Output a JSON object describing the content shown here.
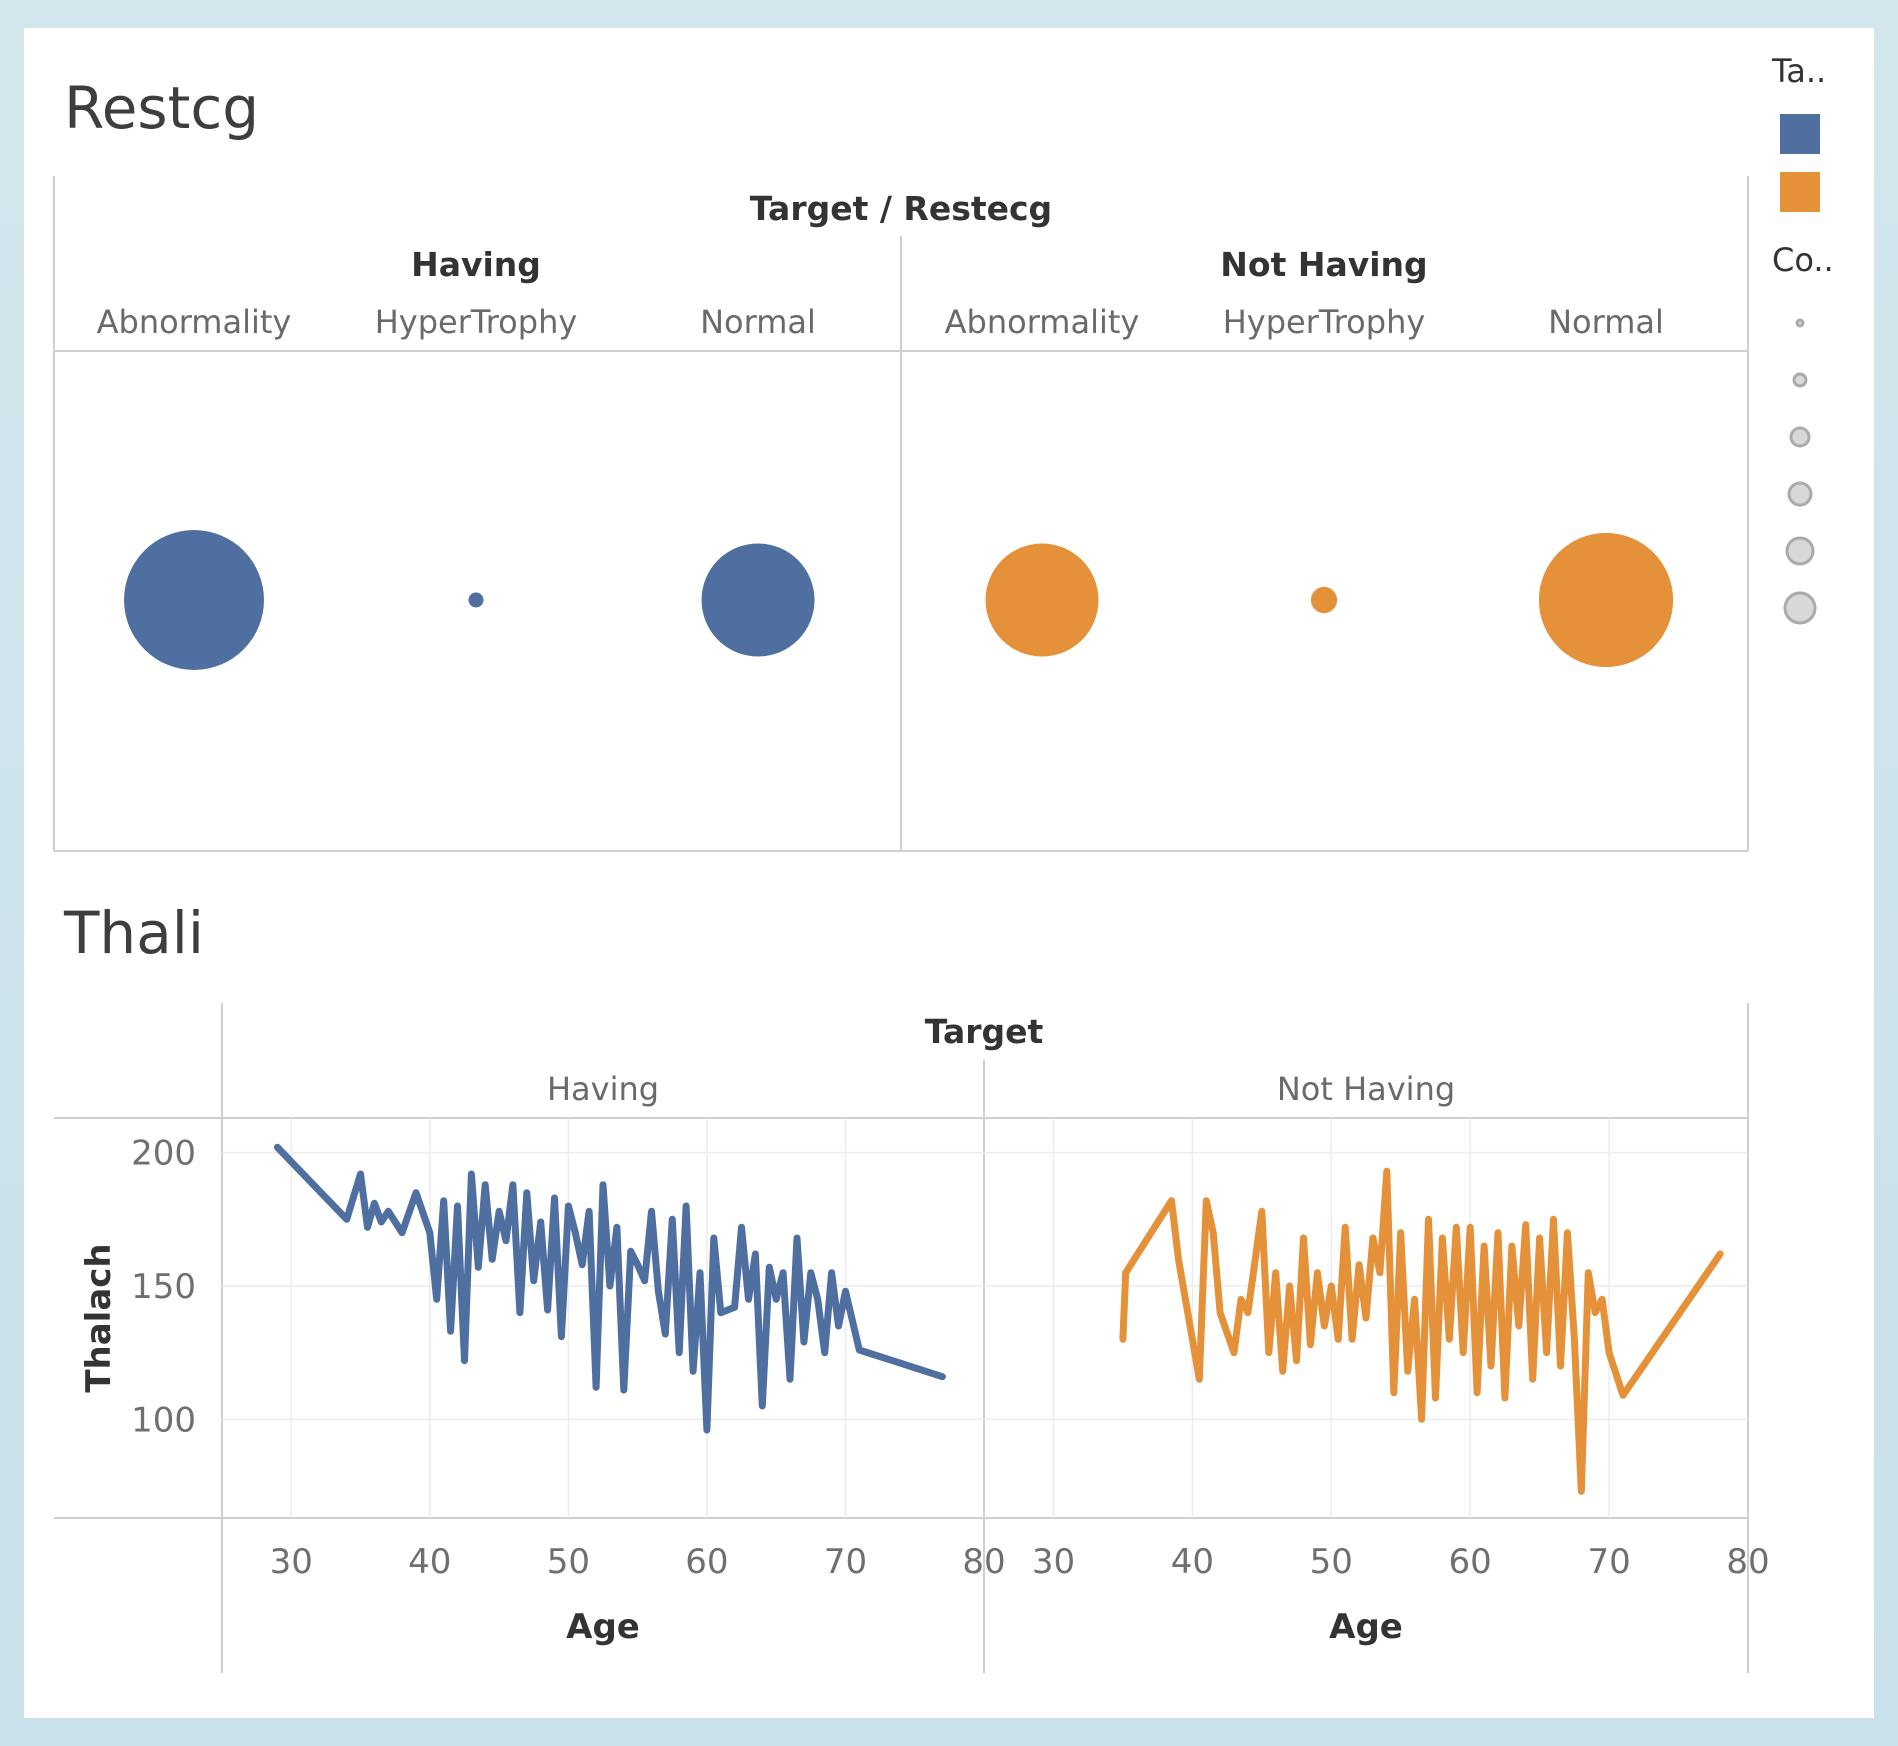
{
  "legend": {
    "color_title": "Ta..",
    "size_title": "Co..",
    "colors": [
      "#4e6fa0",
      "#e5913a"
    ]
  },
  "chart_data": [
    {
      "type": "scatter",
      "title": "Restcg",
      "header": "Target / Restecg",
      "groups": [
        "Having",
        "Not Having"
      ],
      "categories": [
        "Abnormality",
        "HyperTrophy",
        "Normal"
      ],
      "series": [
        {
          "name": "Having",
          "color": "#4e6fa0",
          "sizes": [
            86,
            1,
            56
          ]
        },
        {
          "name": "Not Having",
          "color": "#e5913a",
          "sizes": [
            56,
            3,
            79
          ]
        }
      ]
    },
    {
      "type": "line",
      "title": "Thali",
      "header": "Target",
      "xlabel": "Age",
      "ylabel": "Thalach",
      "xlim": [
        25,
        80
      ],
      "ylim": [
        63,
        213
      ],
      "xticks": [
        30,
        40,
        50,
        60,
        70,
        80
      ],
      "yticks": [
        100,
        150,
        200
      ],
      "series": [
        {
          "name": "Having",
          "color": "#4e6fa0",
          "x": [
            29,
            34,
            35,
            35.5,
            36,
            36.5,
            37,
            38,
            39,
            40,
            40.5,
            41,
            41.5,
            42,
            42.5,
            43,
            43.5,
            44,
            44.5,
            45,
            45.5,
            46,
            46.5,
            47,
            47.5,
            48,
            48.5,
            49,
            49.5,
            50,
            50.5,
            51,
            51.5,
            52,
            52.5,
            53,
            53.5,
            54,
            54.5,
            55,
            55.5,
            56,
            56.5,
            57,
            57.5,
            58,
            58.5,
            59,
            59.5,
            60,
            60.5,
            61,
            62,
            62.5,
            63,
            63.5,
            64,
            64.5,
            65,
            65.5,
            66,
            66.5,
            67,
            67.5,
            68,
            68.5,
            69,
            69.5,
            70,
            71,
            74,
            77
          ],
          "y": [
            202,
            175,
            192,
            172,
            181,
            174,
            178,
            170,
            185,
            170,
            145,
            182,
            133,
            180,
            122,
            192,
            157,
            188,
            160,
            178,
            167,
            188,
            140,
            185,
            152,
            174,
            141,
            183,
            131,
            180,
            170,
            158,
            178,
            112,
            188,
            150,
            172,
            111,
            163,
            158,
            152,
            178,
            148,
            132,
            175,
            125,
            180,
            118,
            155,
            96,
            168,
            140,
            142,
            172,
            145,
            162,
            105,
            157,
            145,
            155,
            115,
            168,
            129,
            155,
            145,
            125,
            155,
            135,
            148,
            126,
            121,
            116
          ]
        },
        {
          "name": "Not Having",
          "color": "#e5913a",
          "x": [
            35,
            35.2,
            38.5,
            39,
            40.5,
            41,
            41.5,
            42,
            43,
            43.5,
            44,
            45,
            45.5,
            46,
            46.5,
            47,
            47.5,
            48,
            48.5,
            49,
            49.5,
            50,
            50.5,
            51,
            51.5,
            52,
            52.5,
            53,
            53.5,
            54,
            54.5,
            55,
            55.5,
            56,
            56.5,
            57,
            57.5,
            58,
            58.5,
            59,
            59.5,
            60,
            60.5,
            61,
            61.5,
            62,
            62.5,
            63,
            63.5,
            64,
            64.5,
            65,
            65.5,
            66,
            66.5,
            67,
            67.5,
            68,
            68.5,
            69,
            69.5,
            70,
            71,
            78
          ],
          "y": [
            130,
            155,
            182,
            160,
            115,
            182,
            170,
            140,
            125,
            145,
            140,
            178,
            125,
            155,
            118,
            150,
            122,
            168,
            128,
            155,
            135,
            150,
            130,
            172,
            130,
            158,
            138,
            168,
            155,
            193,
            110,
            170,
            118,
            145,
            100,
            175,
            108,
            168,
            130,
            172,
            125,
            172,
            110,
            165,
            120,
            170,
            108,
            165,
            135,
            173,
            115,
            168,
            125,
            175,
            120,
            170,
            130,
            73,
            155,
            140,
            145,
            125,
            109,
            162
          ]
        }
      ]
    }
  ]
}
